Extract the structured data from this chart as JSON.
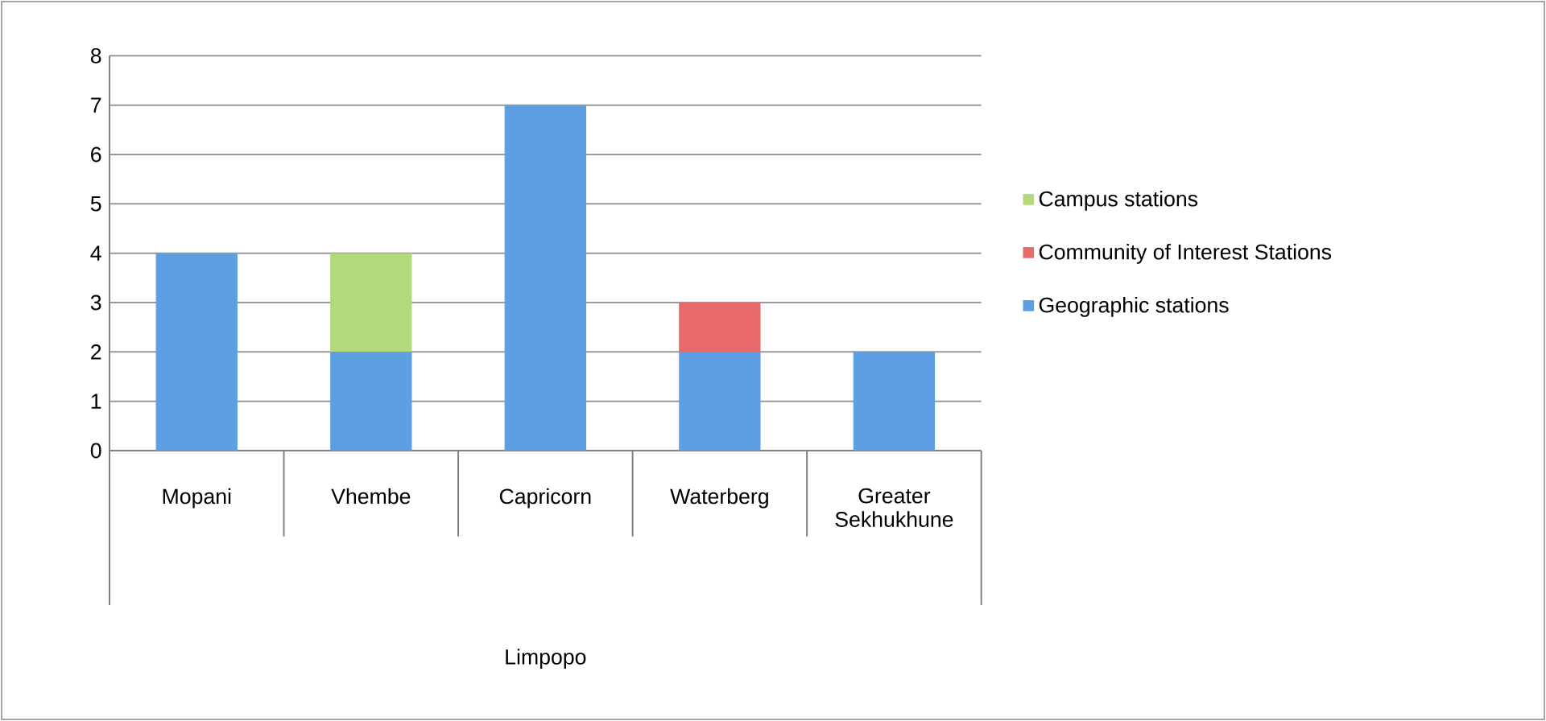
{
  "chart_data": {
    "type": "bar",
    "stacked": true,
    "categories": [
      "Mopani",
      "Vhembe",
      "Capricorn",
      "Waterberg",
      "Greater Sekhukhune"
    ],
    "annotations": [
      "Limpopo"
    ],
    "series": [
      {
        "name": "Geographic stations",
        "color": "#5e9fe3",
        "values": [
          4,
          2,
          7,
          2,
          2
        ]
      },
      {
        "name": "Community of Interest Stations",
        "color": "#e8696a",
        "values": [
          0,
          0,
          0,
          1,
          0
        ]
      },
      {
        "name": "Campus stations",
        "color": "#b3d97a",
        "values": [
          0,
          2,
          0,
          0,
          0
        ]
      }
    ],
    "ylim": [
      0,
      8
    ],
    "yticks": [
      0,
      1,
      2,
      3,
      4,
      5,
      6,
      7,
      8
    ],
    "grid": "y",
    "legend": "right"
  }
}
